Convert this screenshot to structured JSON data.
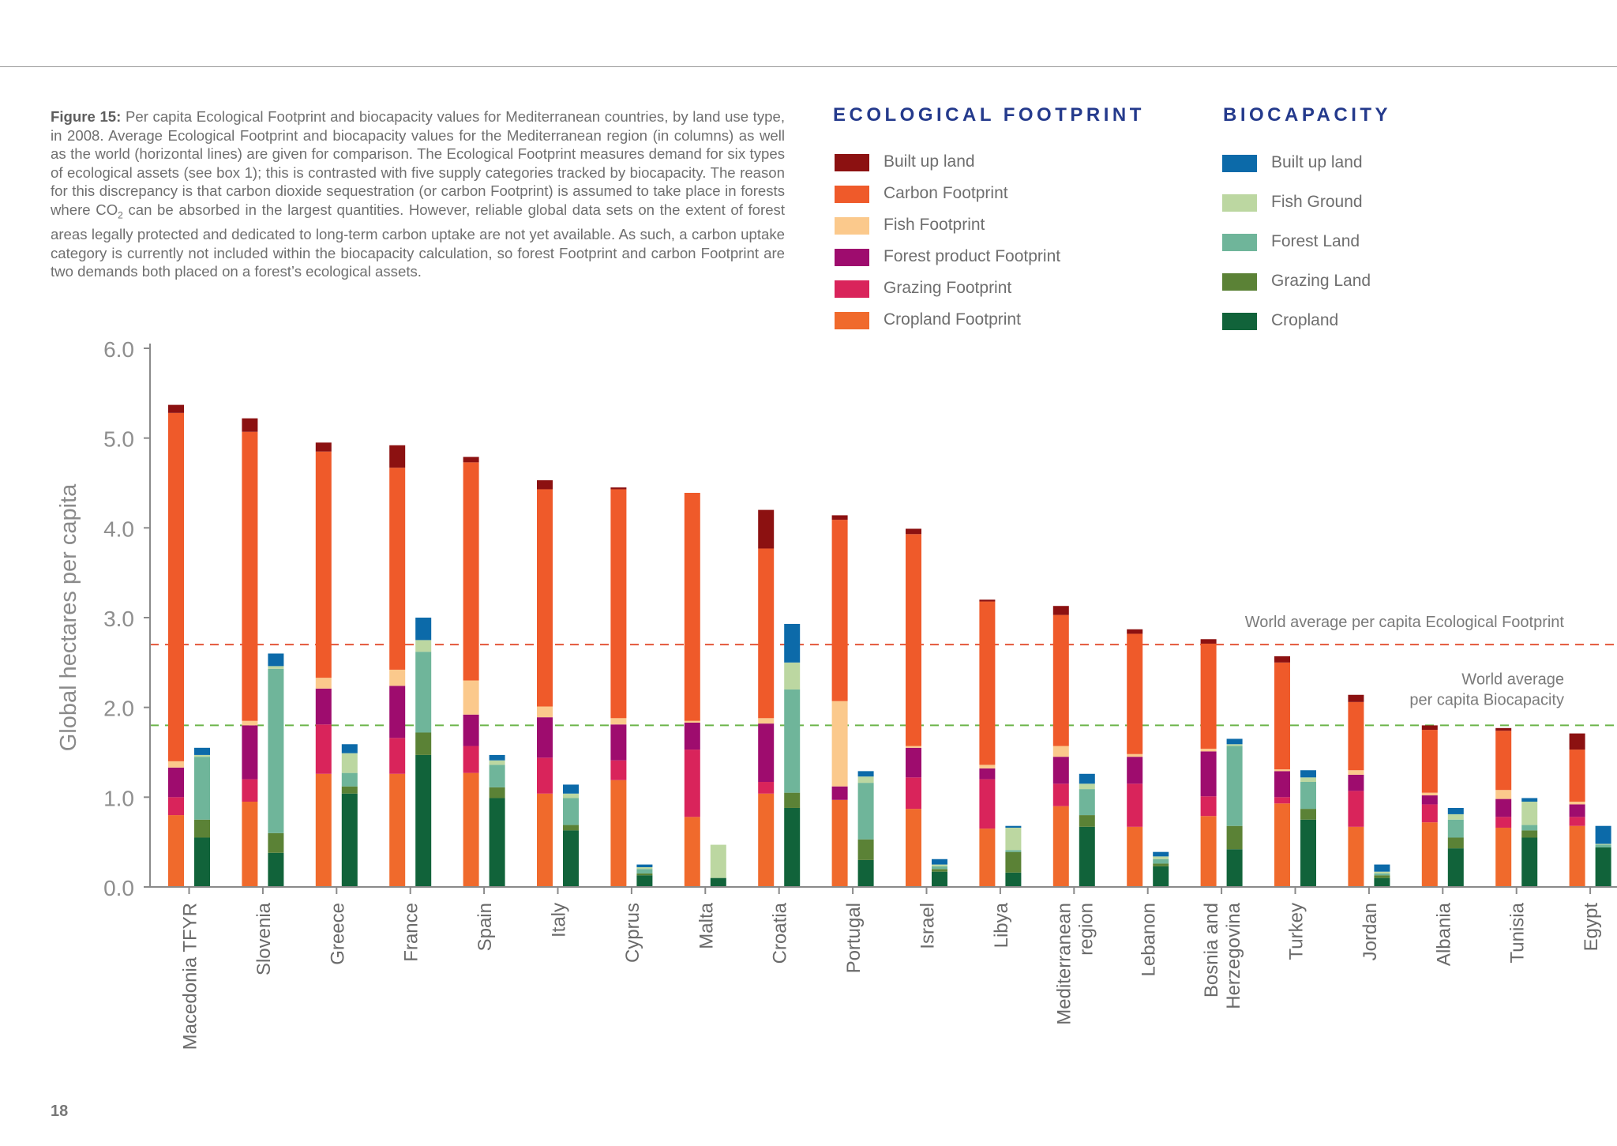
{
  "page": {
    "page_number": "18",
    "caption_label": "Figure 15:",
    "caption_text_1": " Per capita Ecological Footprint and biocapacity values for Mediterranean countries, by land use type, in 2008. Average Ecological Footprint and biocapacity values for the Mediterranean region (in columns) as well as the world (horizontal lines) are given for comparison.  The Ecological Footprint measures demand for six types of ecological assets (see box 1); this is contrasted with five supply categories tracked by biocapacity. The reason for this discrepancy is that carbon dioxide sequestration (or carbon Footprint) is assumed to take place in forests where CO",
    "caption_subscript": "2",
    "caption_text_2": " can be absorbed in the largest quantities. However, reliable global data sets on the extent of forest areas legally protected and dedicated to long-term carbon uptake are not yet available. As such, a carbon uptake category is currently not included within the biocapacity calculation, so forest Footprint and carbon Footprint are two demands both placed on a forest’s ecological assets."
  },
  "legend": {
    "footprint_title": "ECOLOGICAL FOOTPRINT",
    "biocapacity_title": "BIOCAPACITY",
    "footprint_items": [
      {
        "label": "Built up land",
        "color": "#8c1111"
      },
      {
        "label": "Carbon Footprint",
        "color": "#ef5a2a"
      },
      {
        "label": "Fish Footprint",
        "color": "#fbc98c"
      },
      {
        "label": "Forest product Footprint",
        "color": "#9e0c6e"
      },
      {
        "label": "Grazing Footprint",
        "color": "#d9245b"
      },
      {
        "label": "Cropland Footprint",
        "color": "#f06a2c"
      }
    ],
    "biocapacity_items": [
      {
        "label": "Built up land",
        "color": "#0c6aa9"
      },
      {
        "label": "Fish Ground",
        "color": "#bcd7a1"
      },
      {
        "label": "Forest Land",
        "color": "#6fb59a"
      },
      {
        "label": "Grazing Land",
        "color": "#5b8236"
      },
      {
        "label": "Cropland",
        "color": "#11633a"
      }
    ]
  },
  "chart_data": {
    "type": "bar",
    "subtype": "stacked, paired (footprint column and biocapacity column per country)",
    "ylabel": "Global hectares per capita",
    "ylim": [
      0,
      6
    ],
    "yticks": [
      "0.0",
      "1.0",
      "2.0",
      "3.0",
      "4.0",
      "5.0",
      "6.0"
    ],
    "grid": false,
    "reference_lines": [
      {
        "label": "World average per capita Ecological Footprint",
        "value": 2.7,
        "color": "#e4573a"
      },
      {
        "label_line_1": "World average",
        "label_line_2": "per capita Biocapacity",
        "value": 1.8,
        "color": "#6bb54a"
      }
    ],
    "categories": [
      [
        "Macedonia TFYR"
      ],
      [
        "Slovenia"
      ],
      [
        "Greece"
      ],
      [
        "France"
      ],
      [
        "Spain"
      ],
      [
        "Italy"
      ],
      [
        "Cyprus"
      ],
      [
        "Malta"
      ],
      [
        "Croatia"
      ],
      [
        "Portugal"
      ],
      [
        "Israel"
      ],
      [
        "Libya"
      ],
      [
        "Mediterranean",
        "region"
      ],
      [
        "Lebanon"
      ],
      [
        "Bosnia and",
        "Herzegovina"
      ],
      [
        "Turkey"
      ],
      [
        "Jordan"
      ],
      [
        "Albania"
      ],
      [
        "Tunisia"
      ],
      [
        "Egypt"
      ]
    ],
    "footprint_series_order": [
      "Cropland Footprint",
      "Grazing Footprint",
      "Forest product Footprint",
      "Fish Footprint",
      "Carbon Footprint",
      "Built up land"
    ],
    "footprint_values": [
      [
        0.8,
        0.2,
        0.33,
        0.07,
        3.88,
        0.09
      ],
      [
        0.95,
        0.25,
        0.6,
        0.05,
        3.22,
        0.15
      ],
      [
        1.26,
        0.55,
        0.4,
        0.12,
        2.52,
        0.1
      ],
      [
        1.26,
        0.4,
        0.58,
        0.18,
        2.25,
        0.25
      ],
      [
        1.27,
        0.3,
        0.35,
        0.38,
        2.43,
        0.06
      ],
      [
        1.04,
        0.4,
        0.45,
        0.12,
        2.42,
        0.1
      ],
      [
        1.19,
        0.22,
        0.4,
        0.07,
        2.55,
        0.02
      ],
      [
        0.78,
        0.75,
        0.3,
        0.02,
        2.54,
        0.0
      ],
      [
        1.04,
        0.13,
        0.65,
        0.06,
        1.89,
        0.43
      ],
      [
        0.97,
        0.0,
        0.15,
        0.95,
        2.02,
        0.05
      ],
      [
        0.87,
        0.35,
        0.33,
        0.02,
        2.36,
        0.06
      ],
      [
        0.65,
        0.55,
        0.12,
        0.04,
        1.82,
        0.02
      ],
      [
        0.9,
        0.25,
        0.3,
        0.12,
        1.46,
        0.1
      ],
      [
        0.67,
        0.48,
        0.3,
        0.03,
        1.34,
        0.05
      ],
      [
        0.79,
        0.22,
        0.5,
        0.03,
        1.17,
        0.05
      ],
      [
        0.93,
        0.07,
        0.29,
        0.02,
        1.19,
        0.07
      ],
      [
        0.67,
        0.4,
        0.18,
        0.05,
        0.76,
        0.08
      ],
      [
        0.72,
        0.2,
        0.1,
        0.03,
        0.7,
        0.05
      ],
      [
        0.66,
        0.12,
        0.2,
        0.1,
        0.66,
        0.03
      ],
      [
        0.68,
        0.1,
        0.14,
        0.03,
        0.58,
        0.18
      ]
    ],
    "biocapacity_series_order": [
      "Cropland",
      "Grazing Land",
      "Forest Land",
      "Fish Ground",
      "Built up land"
    ],
    "biocapacity_values": [
      [
        0.55,
        0.2,
        0.7,
        0.02,
        0.08
      ],
      [
        0.38,
        0.22,
        1.83,
        0.03,
        0.14
      ],
      [
        1.04,
        0.08,
        0.15,
        0.22,
        0.1
      ],
      [
        1.47,
        0.25,
        0.9,
        0.13,
        0.25
      ],
      [
        0.99,
        0.12,
        0.25,
        0.05,
        0.06
      ],
      [
        0.63,
        0.06,
        0.3,
        0.05,
        0.1
      ],
      [
        0.13,
        0.02,
        0.05,
        0.02,
        0.03
      ],
      [
        0.1,
        0.0,
        0.0,
        0.37,
        0.0
      ],
      [
        0.88,
        0.17,
        1.15,
        0.3,
        0.43
      ],
      [
        0.3,
        0.23,
        0.63,
        0.07,
        0.06
      ],
      [
        0.17,
        0.03,
        0.03,
        0.02,
        0.06
      ],
      [
        0.16,
        0.23,
        0.02,
        0.25,
        0.02
      ],
      [
        0.67,
        0.13,
        0.29,
        0.06,
        0.11
      ],
      [
        0.23,
        0.03,
        0.05,
        0.03,
        0.05
      ],
      [
        0.42,
        0.26,
        0.89,
        0.02,
        0.06
      ],
      [
        0.75,
        0.12,
        0.3,
        0.05,
        0.08
      ],
      [
        0.1,
        0.03,
        0.02,
        0.02,
        0.08
      ],
      [
        0.43,
        0.12,
        0.2,
        0.06,
        0.07
      ],
      [
        0.55,
        0.08,
        0.06,
        0.26,
        0.04
      ],
      [
        0.44,
        0.0,
        0.03,
        0.01,
        0.2
      ]
    ]
  }
}
